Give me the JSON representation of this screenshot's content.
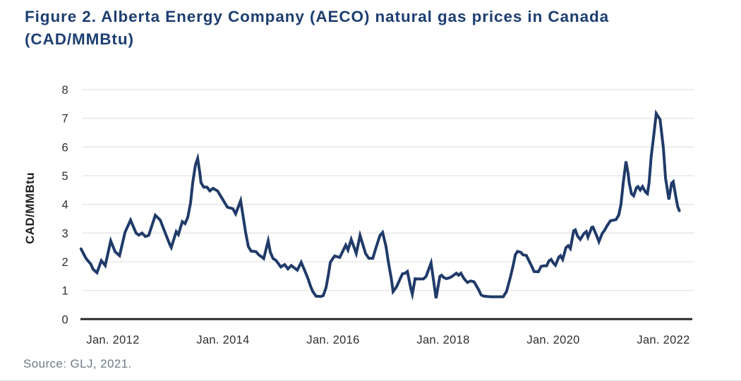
{
  "figure": {
    "title_line1": "Figure 2. Alberta Energy Company (AECO) natural gas prices in Canada",
    "title_line2": "(CAD/MMBtu)",
    "source": "Source: GLJ, 2021."
  },
  "colors": {
    "title": "#1d3e71",
    "line": "#203b69",
    "grid": "#e4e4e4",
    "axis": "#2b2b2b",
    "tick_text": "#2f2f2f",
    "source_text": "#6e7a86",
    "bottom_rule": "#d9e2ea"
  },
  "chart_data": {
    "type": "line",
    "title": "Alberta Energy Company (AECO) natural gas prices in Canada (CAD/MMBtu)",
    "xlabel": "",
    "ylabel": "CAD/MMBtu",
    "ylim": [
      0,
      8
    ],
    "xlim": [
      2011.41,
      2022.53
    ],
    "y_ticks": [
      0,
      1,
      2,
      3,
      4,
      5,
      6,
      7,
      8
    ],
    "x_ticks": [
      {
        "year": 2012,
        "label": "Jan. 2012"
      },
      {
        "year": 2014,
        "label": "Jan. 2014"
      },
      {
        "year": 2016,
        "label": "Jan. 2016"
      },
      {
        "year": 2018,
        "label": "Jan. 2018"
      },
      {
        "year": 2020,
        "label": "Jan. 2020"
      },
      {
        "year": 2022,
        "label": "Jan. 2022"
      }
    ],
    "grid": "horizontal",
    "legend_position": "none",
    "series": [
      {
        "name": "AECO natural gas price (CAD/MMBtu), x = decimal year",
        "points": [
          [
            2011.42,
            2.45
          ],
          [
            2011.51,
            2.12
          ],
          [
            2011.6,
            1.91
          ],
          [
            2011.64,
            1.74
          ],
          [
            2011.71,
            1.62
          ],
          [
            2011.79,
            2.04
          ],
          [
            2011.86,
            1.87
          ],
          [
            2011.96,
            2.73
          ],
          [
            2012.04,
            2.35
          ],
          [
            2012.12,
            2.21
          ],
          [
            2012.22,
            3.03
          ],
          [
            2012.32,
            3.45
          ],
          [
            2012.42,
            3.0
          ],
          [
            2012.47,
            2.93
          ],
          [
            2012.53,
            3.0
          ],
          [
            2012.59,
            2.88
          ],
          [
            2012.65,
            2.92
          ],
          [
            2012.77,
            3.62
          ],
          [
            2012.86,
            3.45
          ],
          [
            2012.92,
            3.15
          ],
          [
            2013.03,
            2.62
          ],
          [
            2013.06,
            2.5
          ],
          [
            2013.15,
            3.05
          ],
          [
            2013.19,
            2.95
          ],
          [
            2013.26,
            3.4
          ],
          [
            2013.31,
            3.33
          ],
          [
            2013.36,
            3.55
          ],
          [
            2013.41,
            4.05
          ],
          [
            2013.45,
            4.76
          ],
          [
            2013.5,
            5.38
          ],
          [
            2013.54,
            5.6
          ],
          [
            2013.58,
            5.09
          ],
          [
            2013.6,
            4.76
          ],
          [
            2013.65,
            4.6
          ],
          [
            2013.71,
            4.6
          ],
          [
            2013.76,
            4.47
          ],
          [
            2013.82,
            4.56
          ],
          [
            2013.87,
            4.5
          ],
          [
            2013.9,
            4.47
          ],
          [
            2013.99,
            4.19
          ],
          [
            2014.08,
            3.9
          ],
          [
            2014.18,
            3.85
          ],
          [
            2014.23,
            3.67
          ],
          [
            2014.32,
            4.13
          ],
          [
            2014.37,
            3.52
          ],
          [
            2014.41,
            3.03
          ],
          [
            2014.46,
            2.53
          ],
          [
            2014.51,
            2.37
          ],
          [
            2014.6,
            2.35
          ],
          [
            2014.65,
            2.24
          ],
          [
            2014.71,
            2.16
          ],
          [
            2014.74,
            2.11
          ],
          [
            2014.82,
            2.73
          ],
          [
            2014.86,
            2.33
          ],
          [
            2014.91,
            2.11
          ],
          [
            2014.96,
            2.05
          ],
          [
            2015.0,
            1.95
          ],
          [
            2015.05,
            1.82
          ],
          [
            2015.12,
            1.9
          ],
          [
            2015.18,
            1.75
          ],
          [
            2015.24,
            1.87
          ],
          [
            2015.35,
            1.71
          ],
          [
            2015.42,
            1.98
          ],
          [
            2015.5,
            1.62
          ],
          [
            2015.55,
            1.38
          ],
          [
            2015.59,
            1.15
          ],
          [
            2015.63,
            0.97
          ],
          [
            2015.69,
            0.8
          ],
          [
            2015.78,
            0.79
          ],
          [
            2015.82,
            0.82
          ],
          [
            2015.87,
            1.09
          ],
          [
            2015.91,
            1.5
          ],
          [
            2015.95,
            1.98
          ],
          [
            2015.99,
            2.1
          ],
          [
            2016.03,
            2.2
          ],
          [
            2016.12,
            2.15
          ],
          [
            2016.18,
            2.38
          ],
          [
            2016.23,
            2.58
          ],
          [
            2016.27,
            2.41
          ],
          [
            2016.33,
            2.78
          ],
          [
            2016.42,
            2.29
          ],
          [
            2016.49,
            2.92
          ],
          [
            2016.55,
            2.54
          ],
          [
            2016.59,
            2.29
          ],
          [
            2016.65,
            2.12
          ],
          [
            2016.72,
            2.12
          ],
          [
            2016.78,
            2.49
          ],
          [
            2016.85,
            2.91
          ],
          [
            2016.9,
            3.02
          ],
          [
            2016.96,
            2.54
          ],
          [
            2017.0,
            2.04
          ],
          [
            2017.06,
            1.38
          ],
          [
            2017.09,
            0.96
          ],
          [
            2017.15,
            1.12
          ],
          [
            2017.26,
            1.58
          ],
          [
            2017.31,
            1.6
          ],
          [
            2017.35,
            1.66
          ],
          [
            2017.41,
            1.09
          ],
          [
            2017.44,
            0.87
          ],
          [
            2017.49,
            1.41
          ],
          [
            2017.54,
            1.4
          ],
          [
            2017.64,
            1.4
          ],
          [
            2017.69,
            1.49
          ],
          [
            2017.78,
            1.96
          ],
          [
            2017.87,
            0.73
          ],
          [
            2017.94,
            1.49
          ],
          [
            2017.97,
            1.53
          ],
          [
            2018.01,
            1.45
          ],
          [
            2018.06,
            1.41
          ],
          [
            2018.13,
            1.45
          ],
          [
            2018.19,
            1.53
          ],
          [
            2018.24,
            1.6
          ],
          [
            2018.28,
            1.53
          ],
          [
            2018.32,
            1.6
          ],
          [
            2018.38,
            1.41
          ],
          [
            2018.44,
            1.28
          ],
          [
            2018.5,
            1.33
          ],
          [
            2018.56,
            1.3
          ],
          [
            2018.64,
            1.04
          ],
          [
            2018.69,
            0.84
          ],
          [
            2018.74,
            0.8
          ],
          [
            2018.86,
            0.78
          ],
          [
            2018.99,
            0.78
          ],
          [
            2019.09,
            0.78
          ],
          [
            2019.15,
            0.96
          ],
          [
            2019.22,
            1.46
          ],
          [
            2019.27,
            1.87
          ],
          [
            2019.31,
            2.24
          ],
          [
            2019.35,
            2.36
          ],
          [
            2019.41,
            2.33
          ],
          [
            2019.45,
            2.24
          ],
          [
            2019.51,
            2.22
          ],
          [
            2019.56,
            2.03
          ],
          [
            2019.62,
            1.79
          ],
          [
            2019.65,
            1.66
          ],
          [
            2019.73,
            1.65
          ],
          [
            2019.78,
            1.84
          ],
          [
            2019.83,
            1.86
          ],
          [
            2019.88,
            1.86
          ],
          [
            2019.92,
            2.03
          ],
          [
            2019.96,
            2.08
          ],
          [
            2020.0,
            1.96
          ],
          [
            2020.04,
            1.88
          ],
          [
            2020.1,
            2.16
          ],
          [
            2020.13,
            2.21
          ],
          [
            2020.17,
            2.08
          ],
          [
            2020.23,
            2.49
          ],
          [
            2020.27,
            2.56
          ],
          [
            2020.31,
            2.46
          ],
          [
            2020.37,
            3.08
          ],
          [
            2020.4,
            3.11
          ],
          [
            2020.44,
            2.9
          ],
          [
            2020.49,
            2.78
          ],
          [
            2020.56,
            2.99
          ],
          [
            2020.6,
            3.05
          ],
          [
            2020.63,
            2.86
          ],
          [
            2020.7,
            3.2
          ],
          [
            2020.72,
            3.21
          ],
          [
            2020.79,
            2.9
          ],
          [
            2020.83,
            2.7
          ],
          [
            2020.89,
            2.99
          ],
          [
            2020.93,
            3.09
          ],
          [
            2020.98,
            3.26
          ],
          [
            2021.04,
            3.43
          ],
          [
            2021.1,
            3.45
          ],
          [
            2021.14,
            3.47
          ],
          [
            2021.19,
            3.63
          ],
          [
            2021.23,
            4.0
          ],
          [
            2021.27,
            4.74
          ],
          [
            2021.32,
            5.5
          ],
          [
            2021.36,
            5.07
          ],
          [
            2021.38,
            4.74
          ],
          [
            2021.42,
            4.37
          ],
          [
            2021.46,
            4.3
          ],
          [
            2021.51,
            4.58
          ],
          [
            2021.54,
            4.62
          ],
          [
            2021.58,
            4.5
          ],
          [
            2021.62,
            4.62
          ],
          [
            2021.64,
            4.55
          ],
          [
            2021.68,
            4.42
          ],
          [
            2021.71,
            4.37
          ],
          [
            2021.74,
            4.74
          ],
          [
            2021.78,
            5.68
          ],
          [
            2021.83,
            6.47
          ],
          [
            2021.87,
            7.17
          ],
          [
            2021.94,
            6.96
          ],
          [
            2022.0,
            5.97
          ],
          [
            2022.04,
            4.91
          ],
          [
            2022.1,
            4.17
          ],
          [
            2022.15,
            4.74
          ],
          [
            2022.18,
            4.79
          ],
          [
            2022.22,
            4.33
          ],
          [
            2022.26,
            3.92
          ],
          [
            2022.29,
            3.78
          ]
        ]
      }
    ]
  }
}
